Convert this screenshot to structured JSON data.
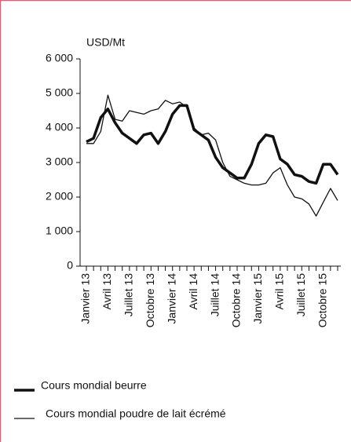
{
  "chart_data": {
    "type": "line",
    "y_label": "USD/Mt",
    "categories": [
      "Janvier 13",
      null,
      null,
      "Avril 13",
      null,
      null,
      "Juillet 13",
      null,
      null,
      "Octobre 13",
      null,
      null,
      "Janvier 14",
      null,
      null,
      "Avril 14",
      null,
      null,
      "Juillet 14",
      null,
      null,
      "Octobre 14",
      null,
      null,
      "Janvier 15",
      null,
      null,
      "Avril 15",
      null,
      null,
      "Juillet 15",
      null,
      null,
      "Octobre 15",
      null,
      null
    ],
    "series": [
      {
        "name": "Cours mondial beurre",
        "color": "#111111",
        "width": 3.5,
        "values": [
          3600,
          3700,
          4300,
          4550,
          4150,
          3850,
          3700,
          3550,
          3800,
          3850,
          3550,
          3900,
          4400,
          4650,
          4650,
          3950,
          3800,
          3650,
          3150,
          2850,
          2700,
          2550,
          2550,
          2950,
          3550,
          3800,
          3750,
          3100,
          2950,
          2650,
          2600,
          2450,
          2400,
          2950,
          2950,
          2650
        ]
      },
      {
        "name": "Cours mondial poudre de lait écrémé",
        "color": "#111111",
        "width": 1.3,
        "values": [
          3550,
          3550,
          3900,
          4950,
          4250,
          4200,
          4500,
          4450,
          4400,
          4500,
          4550,
          4800,
          4700,
          4750,
          4600,
          4000,
          3800,
          3850,
          3650,
          3000,
          2600,
          2500,
          2400,
          2350,
          2350,
          2400,
          2700,
          2850,
          2350,
          2000,
          1950,
          1800,
          1450,
          1850,
          2250,
          1900
        ]
      }
    ],
    "ylim": [
      0,
      6000
    ],
    "yticks": [
      {
        "value": 0,
        "label": "0"
      },
      {
        "value": 1000,
        "label": "1 000"
      },
      {
        "value": 2000,
        "label": "2 000"
      },
      {
        "value": 3000,
        "label": "3 000"
      },
      {
        "value": 4000,
        "label": "4 000"
      },
      {
        "value": 5000,
        "label": "5 000"
      },
      {
        "value": 6000,
        "label": "6 000"
      }
    ]
  }
}
